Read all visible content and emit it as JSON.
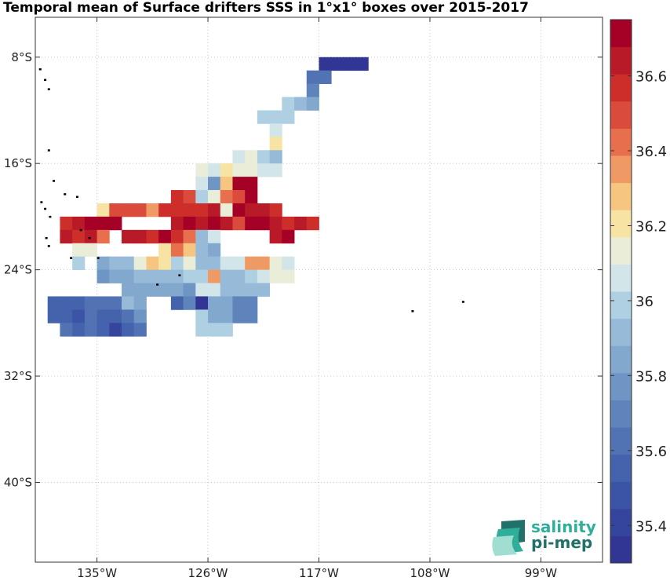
{
  "title": "Temporal mean of Surface drifters SSS in 1°x1° boxes over 2015-2017",
  "logo": {
    "line1": "salinity",
    "line2": "pi-mep"
  },
  "chart_data": {
    "type": "heatmap",
    "title": "Temporal mean of Surface drifters SSS in 1°x1° boxes over 2015-2017",
    "x_range": [
      -140,
      -94
    ],
    "y_range": [
      -46,
      -5
    ],
    "x_ticks": [
      {
        "value": -135,
        "label": "135°W"
      },
      {
        "value": -126,
        "label": "126°W"
      },
      {
        "value": -117,
        "label": "117°W"
      },
      {
        "value": -108,
        "label": "108°W"
      },
      {
        "value": -99,
        "label": "99°W"
      }
    ],
    "y_ticks": [
      {
        "value": -8,
        "label": "8°S"
      },
      {
        "value": -16,
        "label": "16°S"
      },
      {
        "value": -24,
        "label": "24°S"
      },
      {
        "value": -32,
        "label": "32°S"
      },
      {
        "value": -40,
        "label": "40°S"
      }
    ],
    "grid": true,
    "colorbar": {
      "min": 35.3,
      "max": 36.75,
      "tick_values": [
        35.4,
        35.6,
        35.8,
        36.0,
        36.2,
        36.4,
        36.6
      ],
      "tick_labels": [
        "35.4",
        "35.6",
        "35.8",
        "36",
        "36.2",
        "36.4",
        "36.6"
      ],
      "colors": [
        "#313695",
        "#35459d",
        "#3b54a5",
        "#4563ac",
        "#5173b4",
        "#5f84bc",
        "#6f95c4",
        "#82a8ce",
        "#97bad9",
        "#afd0e2",
        "#d2e5e9",
        "#eaeed9",
        "#f7e3a3",
        "#f6c57f",
        "#ef9a64",
        "#e76f4d",
        "#db4b3b",
        "#cd2e2a",
        "#b91a28",
        "#a50026"
      ]
    },
    "cells": [
      {
        "lon": -116.5,
        "lat": -8.5,
        "v": 35.32
      },
      {
        "lon": -115.5,
        "lat": -8.5,
        "v": 35.34
      },
      {
        "lon": -114.5,
        "lat": -8.5,
        "v": 35.36
      },
      {
        "lon": -113.5,
        "lat": -8.5,
        "v": 35.35
      },
      {
        "lon": -117.5,
        "lat": -9.5,
        "v": 35.62
      },
      {
        "lon": -116.5,
        "lat": -9.5,
        "v": 35.65
      },
      {
        "lon": -117.5,
        "lat": -10.5,
        "v": 35.72
      },
      {
        "lon": -119.5,
        "lat": -11.5,
        "v": 35.98
      },
      {
        "lon": -118.5,
        "lat": -11.5,
        "v": 35.9
      },
      {
        "lon": -117.5,
        "lat": -11.5,
        "v": 35.82
      },
      {
        "lon": -121.5,
        "lat": -12.5,
        "v": 36.0
      },
      {
        "lon": -120.5,
        "lat": -12.5,
        "v": 36.0
      },
      {
        "lon": -119.5,
        "lat": -12.5,
        "v": 36.02
      },
      {
        "lon": -120.5,
        "lat": -13.5,
        "v": 36.06
      },
      {
        "lon": -120.5,
        "lat": -14.5,
        "v": 36.18
      },
      {
        "lon": -123.5,
        "lat": -15.5,
        "v": 36.08
      },
      {
        "lon": -122.5,
        "lat": -15.5,
        "v": 36.16
      },
      {
        "lon": -121.5,
        "lat": -15.5,
        "v": 36.0
      },
      {
        "lon": -120.5,
        "lat": -15.5,
        "v": 35.9
      },
      {
        "lon": -126.5,
        "lat": -16.5,
        "v": 36.16
      },
      {
        "lon": -125.5,
        "lat": -16.5,
        "v": 36.06
      },
      {
        "lon": -124.5,
        "lat": -16.5,
        "v": 36.2
      },
      {
        "lon": -123.5,
        "lat": -16.5,
        "v": 36.12
      },
      {
        "lon": -122.5,
        "lat": -16.5,
        "v": 36.1
      },
      {
        "lon": -121.5,
        "lat": -16.5,
        "v": 36.04
      },
      {
        "lon": -120.5,
        "lat": -16.5,
        "v": 36.06
      },
      {
        "lon": -126.5,
        "lat": -17.5,
        "v": 36.08
      },
      {
        "lon": -125.5,
        "lat": -17.5,
        "v": 35.75
      },
      {
        "lon": -124.5,
        "lat": -17.5,
        "v": 36.28
      },
      {
        "lon": -123.5,
        "lat": -17.5,
        "v": 36.7
      },
      {
        "lon": -122.5,
        "lat": -17.5,
        "v": 36.72
      },
      {
        "lon": -128.5,
        "lat": -18.5,
        "v": 36.55
      },
      {
        "lon": -127.5,
        "lat": -18.5,
        "v": 36.5
      },
      {
        "lon": -126.5,
        "lat": -18.5,
        "v": 36.02
      },
      {
        "lon": -125.5,
        "lat": -18.5,
        "v": 36.16
      },
      {
        "lon": -124.5,
        "lat": -18.5,
        "v": 36.4
      },
      {
        "lon": -123.5,
        "lat": -18.5,
        "v": 36.5
      },
      {
        "lon": -122.5,
        "lat": -18.5,
        "v": 36.7
      },
      {
        "lon": -134.5,
        "lat": -19.5,
        "v": 36.24
      },
      {
        "lon": -133.5,
        "lat": -19.5,
        "v": 36.52
      },
      {
        "lon": -132.5,
        "lat": -19.5,
        "v": 36.5
      },
      {
        "lon": -131.5,
        "lat": -19.5,
        "v": 36.52
      },
      {
        "lon": -130.5,
        "lat": -19.5,
        "v": 36.34
      },
      {
        "lon": -129.5,
        "lat": -19.5,
        "v": 36.56
      },
      {
        "lon": -128.5,
        "lat": -19.5,
        "v": 36.6
      },
      {
        "lon": -127.5,
        "lat": -19.5,
        "v": 36.56
      },
      {
        "lon": -126.5,
        "lat": -19.5,
        "v": 36.6
      },
      {
        "lon": -125.5,
        "lat": -19.5,
        "v": 36.64
      },
      {
        "lon": -124.5,
        "lat": -19.5,
        "v": 36.12
      },
      {
        "lon": -123.5,
        "lat": -19.5,
        "v": 36.74
      },
      {
        "lon": -122.5,
        "lat": -19.5,
        "v": 36.62
      },
      {
        "lon": -121.5,
        "lat": -19.5,
        "v": 36.65
      },
      {
        "lon": -120.5,
        "lat": -19.5,
        "v": 36.6
      },
      {
        "lon": -137.5,
        "lat": -20.5,
        "v": 36.6
      },
      {
        "lon": -136.5,
        "lat": -20.5,
        "v": 36.66
      },
      {
        "lon": -135.5,
        "lat": -20.5,
        "v": 36.7
      },
      {
        "lon": -134.5,
        "lat": -20.5,
        "v": 36.68
      },
      {
        "lon": -133.5,
        "lat": -20.5,
        "v": 36.7
      },
      {
        "lon": -128.5,
        "lat": -20.5,
        "v": 36.64
      },
      {
        "lon": -127.5,
        "lat": -20.5,
        "v": 36.72
      },
      {
        "lon": -126.5,
        "lat": -20.5,
        "v": 36.66
      },
      {
        "lon": -125.5,
        "lat": -20.5,
        "v": 36.7
      },
      {
        "lon": -124.5,
        "lat": -20.5,
        "v": 36.66
      },
      {
        "lon": -123.5,
        "lat": -20.5,
        "v": 36.5
      },
      {
        "lon": -122.5,
        "lat": -20.5,
        "v": 36.7
      },
      {
        "lon": -121.5,
        "lat": -20.5,
        "v": 36.72
      },
      {
        "lon": -120.5,
        "lat": -20.5,
        "v": 36.66
      },
      {
        "lon": -119.5,
        "lat": -20.5,
        "v": 36.6
      },
      {
        "lon": -118.5,
        "lat": -20.5,
        "v": 36.65
      },
      {
        "lon": -117.5,
        "lat": -20.5,
        "v": 36.6
      },
      {
        "lon": -137.5,
        "lat": -21.5,
        "v": 36.65
      },
      {
        "lon": -136.5,
        "lat": -21.5,
        "v": 36.55
      },
      {
        "lon": -135.5,
        "lat": -21.5,
        "v": 36.62
      },
      {
        "lon": -134.5,
        "lat": -21.5,
        "v": 36.45
      },
      {
        "lon": -132.5,
        "lat": -21.5,
        "v": 36.65
      },
      {
        "lon": -131.5,
        "lat": -21.5,
        "v": 36.62
      },
      {
        "lon": -130.5,
        "lat": -21.5,
        "v": 36.55
      },
      {
        "lon": -129.5,
        "lat": -21.5,
        "v": 36.68
      },
      {
        "lon": -128.5,
        "lat": -21.5,
        "v": 36.58
      },
      {
        "lon": -127.5,
        "lat": -21.5,
        "v": 36.45
      },
      {
        "lon": -126.5,
        "lat": -21.5,
        "v": 35.95
      },
      {
        "lon": -125.5,
        "lat": -21.5,
        "v": 36.06
      },
      {
        "lon": -120.5,
        "lat": -21.5,
        "v": 36.62
      },
      {
        "lon": -119.5,
        "lat": -21.5,
        "v": 36.68
      },
      {
        "lon": -136.5,
        "lat": -22.5,
        "v": 36.1
      },
      {
        "lon": -135.5,
        "lat": -22.5,
        "v": 36.12
      },
      {
        "lon": -129.5,
        "lat": -22.5,
        "v": 36.24
      },
      {
        "lon": -128.5,
        "lat": -22.5,
        "v": 36.4
      },
      {
        "lon": -127.5,
        "lat": -22.5,
        "v": 36.28
      },
      {
        "lon": -126.5,
        "lat": -22.5,
        "v": 35.95
      },
      {
        "lon": -125.5,
        "lat": -22.5,
        "v": 35.84
      },
      {
        "lon": -136.5,
        "lat": -23.5,
        "v": 35.98
      },
      {
        "lon": -134.5,
        "lat": -23.5,
        "v": 35.82
      },
      {
        "lon": -133.5,
        "lat": -23.5,
        "v": 35.92
      },
      {
        "lon": -132.5,
        "lat": -23.5,
        "v": 35.92
      },
      {
        "lon": -131.5,
        "lat": -23.5,
        "v": 36.14
      },
      {
        "lon": -130.5,
        "lat": -23.5,
        "v": 36.28
      },
      {
        "lon": -129.5,
        "lat": -23.5,
        "v": 36.18
      },
      {
        "lon": -128.5,
        "lat": -23.5,
        "v": 35.98
      },
      {
        "lon": -127.5,
        "lat": -23.5,
        "v": 36.16
      },
      {
        "lon": -126.5,
        "lat": -23.5,
        "v": 35.9
      },
      {
        "lon": -125.5,
        "lat": -23.5,
        "v": 35.92
      },
      {
        "lon": -124.5,
        "lat": -23.5,
        "v": 36.08
      },
      {
        "lon": -123.5,
        "lat": -23.5,
        "v": 36.08
      },
      {
        "lon": -122.5,
        "lat": -23.5,
        "v": 36.35
      },
      {
        "lon": -121.5,
        "lat": -23.5,
        "v": 36.35
      },
      {
        "lon": -120.5,
        "lat": -23.5,
        "v": 36.16
      },
      {
        "lon": -119.5,
        "lat": -23.5,
        "v": 36.06
      },
      {
        "lon": -134.5,
        "lat": -24.5,
        "v": 35.8
      },
      {
        "lon": -133.5,
        "lat": -24.5,
        "v": 35.82
      },
      {
        "lon": -132.5,
        "lat": -24.5,
        "v": 35.82
      },
      {
        "lon": -131.5,
        "lat": -24.5,
        "v": 35.88
      },
      {
        "lon": -130.5,
        "lat": -24.5,
        "v": 35.92
      },
      {
        "lon": -129.5,
        "lat": -24.5,
        "v": 35.9
      },
      {
        "lon": -128.5,
        "lat": -24.5,
        "v": 35.95
      },
      {
        "lon": -127.5,
        "lat": -24.5,
        "v": 36.0
      },
      {
        "lon": -126.5,
        "lat": -24.5,
        "v": 35.98
      },
      {
        "lon": -125.5,
        "lat": -24.5,
        "v": 36.35
      },
      {
        "lon": -124.5,
        "lat": -24.5,
        "v": 35.9
      },
      {
        "lon": -123.5,
        "lat": -24.5,
        "v": 35.92
      },
      {
        "lon": -122.5,
        "lat": -24.5,
        "v": 36.0
      },
      {
        "lon": -121.5,
        "lat": -24.5,
        "v": 36.06
      },
      {
        "lon": -120.5,
        "lat": -24.5,
        "v": 36.1
      },
      {
        "lon": -119.5,
        "lat": -24.5,
        "v": 36.12
      },
      {
        "lon": -132.5,
        "lat": -25.5,
        "v": 35.84
      },
      {
        "lon": -131.5,
        "lat": -25.5,
        "v": 35.84
      },
      {
        "lon": -130.5,
        "lat": -25.5,
        "v": 35.82
      },
      {
        "lon": -129.5,
        "lat": -25.5,
        "v": 35.82
      },
      {
        "lon": -128.5,
        "lat": -25.5,
        "v": 35.84
      },
      {
        "lon": -127.5,
        "lat": -25.5,
        "v": 35.78
      },
      {
        "lon": -126.5,
        "lat": -25.5,
        "v": 36.06
      },
      {
        "lon": -125.5,
        "lat": -25.5,
        "v": 36.04
      },
      {
        "lon": -124.5,
        "lat": -25.5,
        "v": 35.88
      },
      {
        "lon": -123.5,
        "lat": -25.5,
        "v": 35.9
      },
      {
        "lon": -122.5,
        "lat": -25.5,
        "v": 35.92
      },
      {
        "lon": -121.5,
        "lat": -25.5,
        "v": 35.94
      },
      {
        "lon": -138.5,
        "lat": -26.5,
        "v": 35.55
      },
      {
        "lon": -137.5,
        "lat": -26.5,
        "v": 35.52
      },
      {
        "lon": -136.5,
        "lat": -26.5,
        "v": 35.52
      },
      {
        "lon": -135.5,
        "lat": -26.5,
        "v": 35.6
      },
      {
        "lon": -134.5,
        "lat": -26.5,
        "v": 35.65
      },
      {
        "lon": -133.5,
        "lat": -26.5,
        "v": 35.6
      },
      {
        "lon": -132.5,
        "lat": -26.5,
        "v": 35.95
      },
      {
        "lon": -131.5,
        "lat": -26.5,
        "v": 35.82
      },
      {
        "lon": -128.5,
        "lat": -26.5,
        "v": 35.55
      },
      {
        "lon": -127.5,
        "lat": -26.5,
        "v": 35.7
      },
      {
        "lon": -126.5,
        "lat": -26.5,
        "v": 35.35
      },
      {
        "lon": -125.5,
        "lat": -26.5,
        "v": 35.84
      },
      {
        "lon": -124.5,
        "lat": -26.5,
        "v": 35.84
      },
      {
        "lon": -123.5,
        "lat": -26.5,
        "v": 35.7
      },
      {
        "lon": -122.5,
        "lat": -26.5,
        "v": 35.72
      },
      {
        "lon": -138.5,
        "lat": -27.5,
        "v": 35.52
      },
      {
        "lon": -137.5,
        "lat": -27.5,
        "v": 35.52
      },
      {
        "lon": -136.5,
        "lat": -27.5,
        "v": 35.5
      },
      {
        "lon": -135.5,
        "lat": -27.5,
        "v": 35.62
      },
      {
        "lon": -134.5,
        "lat": -27.5,
        "v": 35.58
      },
      {
        "lon": -133.5,
        "lat": -27.5,
        "v": 35.56
      },
      {
        "lon": -132.5,
        "lat": -27.5,
        "v": 35.62
      },
      {
        "lon": -131.5,
        "lat": -27.5,
        "v": 35.74
      },
      {
        "lon": -126.5,
        "lat": -27.5,
        "v": 35.98
      },
      {
        "lon": -125.5,
        "lat": -27.5,
        "v": 35.85
      },
      {
        "lon": -124.5,
        "lat": -27.5,
        "v": 35.86
      },
      {
        "lon": -123.5,
        "lat": -27.5,
        "v": 35.68
      },
      {
        "lon": -122.5,
        "lat": -27.5,
        "v": 35.68
      },
      {
        "lon": -137.5,
        "lat": -28.5,
        "v": 35.6
      },
      {
        "lon": -136.5,
        "lat": -28.5,
        "v": 35.58
      },
      {
        "lon": -135.5,
        "lat": -28.5,
        "v": 35.62
      },
      {
        "lon": -134.5,
        "lat": -28.5,
        "v": 35.55
      },
      {
        "lon": -133.5,
        "lat": -28.5,
        "v": 35.4
      },
      {
        "lon": -132.5,
        "lat": -28.5,
        "v": 35.56
      },
      {
        "lon": -131.5,
        "lat": -28.5,
        "v": 35.62
      },
      {
        "lon": -126.5,
        "lat": -28.5,
        "v": 35.98
      },
      {
        "lon": -125.5,
        "lat": -28.5,
        "v": 35.98
      },
      {
        "lon": -124.5,
        "lat": -28.5,
        "v": 35.98
      }
    ],
    "land": [
      {
        "lon": -139.6,
        "lat": -8.9
      },
      {
        "lon": -139.2,
        "lat": -9.7
      },
      {
        "lon": -138.9,
        "lat": -10.4
      },
      {
        "lon": -138.9,
        "lat": -15.0
      },
      {
        "lon": -138.5,
        "lat": -17.3
      },
      {
        "lon": -137.6,
        "lat": -18.3
      },
      {
        "lon": -136.6,
        "lat": -18.5
      },
      {
        "lon": -139.5,
        "lat": -18.9
      },
      {
        "lon": -139.2,
        "lat": -19.4
      },
      {
        "lon": -138.8,
        "lat": -20.0
      },
      {
        "lon": -136.3,
        "lat": -21.0
      },
      {
        "lon": -135.6,
        "lat": -21.6
      },
      {
        "lon": -139.1,
        "lat": -21.6
      },
      {
        "lon": -138.9,
        "lat": -22.2
      },
      {
        "lon": -137.1,
        "lat": -23.1
      },
      {
        "lon": -134.9,
        "lat": -23.1
      },
      {
        "lon": -130.1,
        "lat": -25.1
      },
      {
        "lon": -128.3,
        "lat": -24.4
      },
      {
        "lon": -109.4,
        "lat": -27.1
      },
      {
        "lon": -105.3,
        "lat": -26.4
      }
    ]
  }
}
